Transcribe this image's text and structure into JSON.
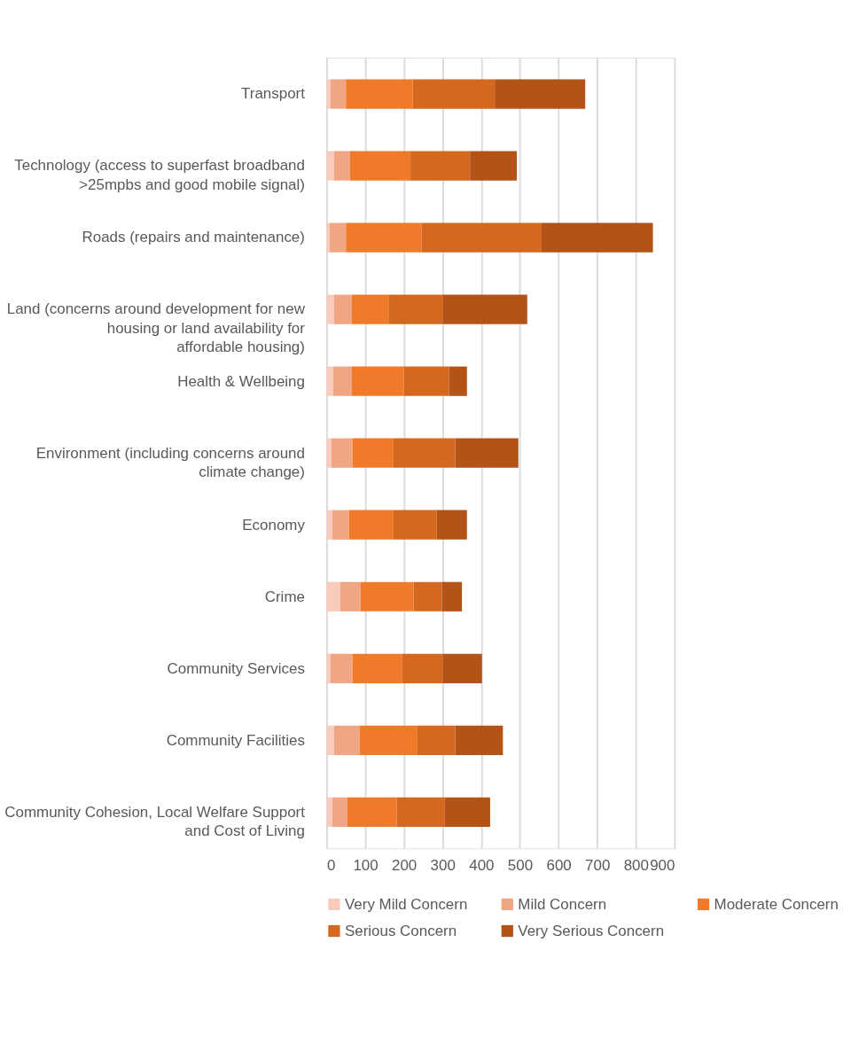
{
  "chart_data": {
    "type": "bar",
    "orientation": "horizontal",
    "stacked": true,
    "categories": [
      "Transport",
      "Technology (access to superfast broadband >25mpbs and good mobile signal)",
      "Roads (repairs and maintenance)",
      "Land (concerns around development for new housing or land availability for affordable housing)",
      "Health & Wellbeing",
      "Environment (including concerns around climate change)",
      "Economy",
      "Crime",
      "Community Services",
      "Community Facilities",
      "Community Cohesion, Local Welfare Support and Cost of Living"
    ],
    "series": [
      {
        "name": "Very Mild Concern",
        "color": "#f8cbbd",
        "values": [
          10,
          19,
          8,
          19,
          17,
          12,
          15,
          35,
          10,
          19,
          15
        ]
      },
      {
        "name": "Mild Concern",
        "color": "#f0a585",
        "values": [
          40,
          41,
          42,
          46,
          48,
          55,
          43,
          53,
          57,
          66,
          39
        ]
      },
      {
        "name": "Moderate Concern",
        "color": "#ef7b2a",
        "values": [
          173,
          157,
          196,
          95,
          135,
          106,
          115,
          137,
          129,
          150,
          127
        ]
      },
      {
        "name": "Serious Concern",
        "color": "#d5681f",
        "values": [
          212,
          154,
          310,
          140,
          117,
          160,
          112,
          73,
          104,
          98,
          125
        ]
      },
      {
        "name": "Very Serious Concern",
        "color": "#b45318",
        "values": [
          234,
          121,
          288,
          219,
          46,
          163,
          78,
          52,
          102,
          123,
          117
        ]
      }
    ],
    "xlim": [
      0,
      900
    ],
    "xticks": [
      0,
      100,
      200,
      300,
      400,
      500,
      600,
      700,
      800,
      900
    ],
    "grid": "x",
    "legend": "bottom"
  }
}
